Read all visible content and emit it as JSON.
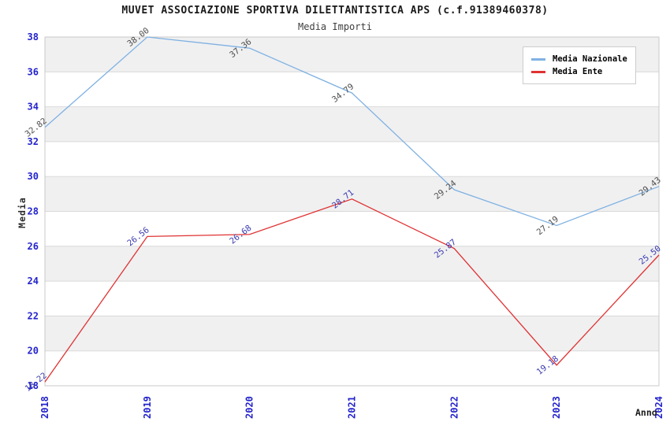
{
  "page": {
    "title": "MUVET ASSOCIAZIONE SPORTIVA DILETTANTISTICA APS (c.f.91389460378)",
    "subtitle": "Media Importi"
  },
  "chart_data": {
    "type": "line",
    "title": "MUVET ASSOCIAZIONE SPORTIVA DILETTANTISTICA APS (c.f.91389460378)",
    "subtitle": "Media Importi",
    "xlabel": "Anno",
    "ylabel": "Media",
    "categories": [
      "2018",
      "2019",
      "2020",
      "2021",
      "2022",
      "2023",
      "2024"
    ],
    "series": [
      {
        "name": "Media Nazionale",
        "color": "#7fb1e2",
        "label_color": "#4d4d4d",
        "values": [
          32.82,
          38.0,
          37.36,
          34.79,
          29.24,
          27.19,
          29.43
        ],
        "labels": [
          "32.82",
          "38.00",
          "37.36",
          "34.79",
          "29.24",
          "27.19",
          "29.43"
        ]
      },
      {
        "name": "Media Ente",
        "color": "#e03232",
        "label_color": "#3a3ab0",
        "values": [
          18.22,
          26.56,
          26.68,
          28.71,
          25.87,
          19.18,
          25.5
        ],
        "labels": [
          "18.22",
          "26.56",
          "26.68",
          "28.71",
          "25.87",
          "19.18",
          "25.50"
        ]
      }
    ],
    "ylim": [
      18,
      38
    ],
    "ytick_step": 2,
    "yticks": [
      "18",
      "20",
      "22",
      "24",
      "26",
      "28",
      "30",
      "32",
      "34",
      "36",
      "38"
    ],
    "grid": true,
    "band_fill": "#f0f0f1",
    "gridline_color": "#d9d9d9",
    "border_color": "#c9c9c9",
    "tick_color": "#2323cc",
    "legend_position": "top-right"
  }
}
